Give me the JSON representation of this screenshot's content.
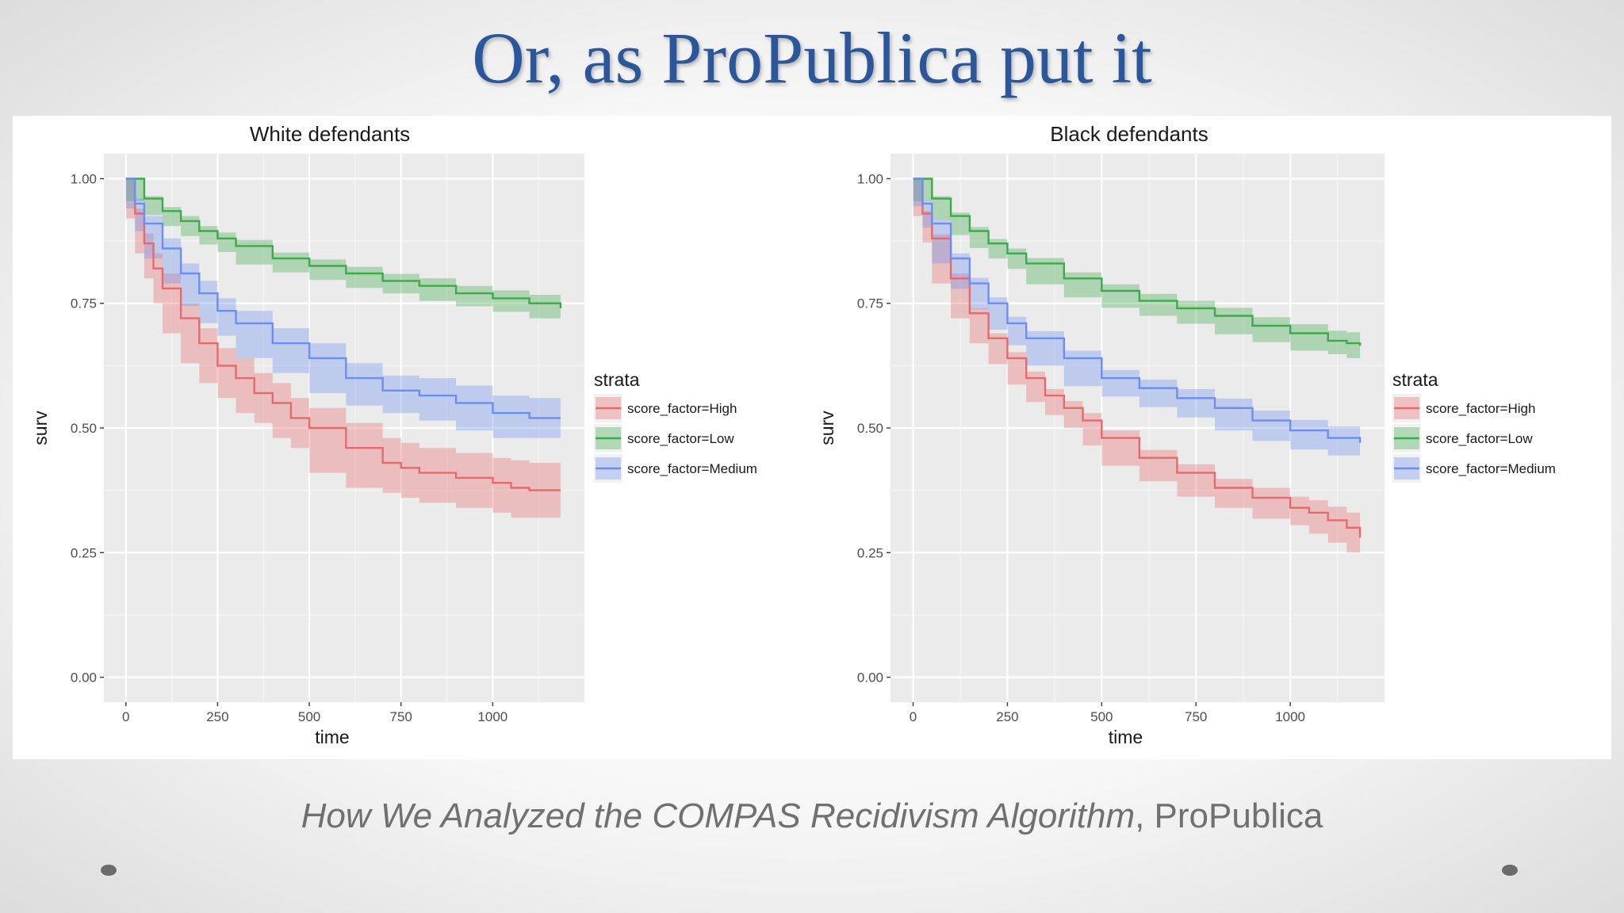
{
  "slide": {
    "title": "Or, as ProPublica put it",
    "caption_italic": "How We Analyzed the COMPAS Recidivism Algorithm",
    "caption_rest": ", ProPublica"
  },
  "colors": {
    "title": "#2b579a",
    "High": "#e8696b",
    "Low": "#3daa4a",
    "Medium": "#6b8ef2",
    "panel_bg": "#ebebeb",
    "grid": "#ffffff"
  },
  "chart_data": [
    {
      "type": "line",
      "title": "White defendants",
      "xlabel": "time",
      "ylabel": "surv",
      "xlim": [
        -60,
        1250
      ],
      "ylim": [
        -0.05,
        1.05
      ],
      "xticks": [
        0,
        250,
        500,
        750,
        1000
      ],
      "xtick_labels": [
        "0",
        "250",
        "500",
        "750",
        "1000"
      ],
      "yticks": [
        0,
        0.25,
        0.5,
        0.75,
        1.0
      ],
      "ytick_labels": [
        "0.00",
        "0.25",
        "0.50",
        "0.75",
        "1.00"
      ],
      "grid": true,
      "legend": {
        "title": "strata",
        "placement": "right",
        "entries": [
          "score_factor=High",
          "score_factor=Low",
          "score_factor=Medium"
        ]
      },
      "series": [
        {
          "name": "score_factor=High",
          "color_key": "High",
          "x": [
            0,
            25,
            50,
            75,
            100,
            150,
            200,
            250,
            300,
            350,
            400,
            450,
            500,
            600,
            700,
            750,
            800,
            900,
            1000,
            1050,
            1100,
            1185
          ],
          "y": [
            1.0,
            0.93,
            0.87,
            0.82,
            0.78,
            0.72,
            0.67,
            0.625,
            0.6,
            0.57,
            0.55,
            0.52,
            0.5,
            0.46,
            0.43,
            0.42,
            0.41,
            0.4,
            0.39,
            0.38,
            0.375,
            0.375
          ],
          "lower": [
            1.0,
            0.92,
            0.85,
            0.8,
            0.75,
            0.69,
            0.63,
            0.59,
            0.56,
            0.53,
            0.51,
            0.48,
            0.46,
            0.41,
            0.38,
            0.37,
            0.36,
            0.35,
            0.34,
            0.33,
            0.32,
            0.32
          ],
          "upper": [
            1.0,
            0.94,
            0.89,
            0.85,
            0.81,
            0.75,
            0.7,
            0.66,
            0.64,
            0.61,
            0.59,
            0.56,
            0.54,
            0.51,
            0.48,
            0.47,
            0.46,
            0.45,
            0.44,
            0.435,
            0.43,
            0.43
          ]
        },
        {
          "name": "score_factor=Low",
          "color_key": "Low",
          "x": [
            0,
            50,
            100,
            150,
            200,
            250,
            300,
            400,
            500,
            600,
            700,
            800,
            900,
            1000,
            1100,
            1185
          ],
          "y": [
            1.0,
            0.96,
            0.935,
            0.915,
            0.895,
            0.88,
            0.865,
            0.84,
            0.825,
            0.81,
            0.795,
            0.785,
            0.77,
            0.76,
            0.75,
            0.74
          ],
          "lower": [
            1.0,
            0.955,
            0.927,
            0.905,
            0.885,
            0.868,
            0.853,
            0.828,
            0.812,
            0.797,
            0.781,
            0.77,
            0.755,
            0.744,
            0.733,
            0.72
          ],
          "upper": [
            1.0,
            0.965,
            0.943,
            0.925,
            0.905,
            0.892,
            0.877,
            0.852,
            0.838,
            0.823,
            0.809,
            0.8,
            0.785,
            0.776,
            0.767,
            0.76
          ]
        },
        {
          "name": "score_factor=Medium",
          "color_key": "Medium",
          "x": [
            0,
            25,
            50,
            100,
            150,
            200,
            250,
            300,
            400,
            500,
            600,
            700,
            800,
            900,
            1000,
            1100,
            1185
          ],
          "y": [
            1.0,
            0.95,
            0.91,
            0.86,
            0.81,
            0.77,
            0.735,
            0.71,
            0.67,
            0.64,
            0.6,
            0.575,
            0.565,
            0.55,
            0.53,
            0.52,
            0.52
          ],
          "lower": [
            1.0,
            0.94,
            0.895,
            0.84,
            0.79,
            0.745,
            0.71,
            0.685,
            0.64,
            0.61,
            0.57,
            0.545,
            0.53,
            0.515,
            0.495,
            0.48,
            0.48
          ],
          "upper": [
            1.0,
            0.96,
            0.925,
            0.88,
            0.83,
            0.795,
            0.76,
            0.735,
            0.7,
            0.67,
            0.63,
            0.605,
            0.6,
            0.585,
            0.565,
            0.56,
            0.56
          ]
        }
      ]
    },
    {
      "type": "line",
      "title": "Black defendants",
      "xlabel": "time",
      "ylabel": "surv",
      "xlim": [
        -60,
        1250
      ],
      "ylim": [
        -0.05,
        1.05
      ],
      "xticks": [
        0,
        250,
        500,
        750,
        1000
      ],
      "xtick_labels": [
        "0",
        "250",
        "500",
        "750",
        "1000"
      ],
      "yticks": [
        0,
        0.25,
        0.5,
        0.75,
        1.0
      ],
      "ytick_labels": [
        "0.00",
        "0.25",
        "0.50",
        "0.75",
        "1.00"
      ],
      "grid": true,
      "legend": {
        "title": "strata",
        "placement": "right",
        "entries": [
          "score_factor=High",
          "score_factor=Low",
          "score_factor=Medium"
        ]
      },
      "series": [
        {
          "name": "score_factor=High",
          "color_key": "High",
          "x": [
            0,
            25,
            50,
            100,
            150,
            200,
            250,
            300,
            350,
            400,
            450,
            500,
            600,
            700,
            800,
            900,
            1000,
            1050,
            1100,
            1150,
            1185
          ],
          "y": [
            1.0,
            0.93,
            0.88,
            0.8,
            0.73,
            0.68,
            0.64,
            0.6,
            0.565,
            0.54,
            0.515,
            0.48,
            0.44,
            0.41,
            0.38,
            0.36,
            0.34,
            0.33,
            0.315,
            0.3,
            0.28
          ],
          "lower": [
            1.0,
            0.925,
            0.872,
            0.79,
            0.72,
            0.67,
            0.628,
            0.587,
            0.552,
            0.526,
            0.5,
            0.465,
            0.424,
            0.393,
            0.362,
            0.34,
            0.318,
            0.305,
            0.288,
            0.27,
            0.25
          ],
          "upper": [
            1.0,
            0.935,
            0.888,
            0.81,
            0.74,
            0.69,
            0.652,
            0.613,
            0.578,
            0.554,
            0.53,
            0.495,
            0.456,
            0.427,
            0.398,
            0.38,
            0.362,
            0.355,
            0.342,
            0.33,
            0.31
          ]
        },
        {
          "name": "score_factor=Low",
          "color_key": "Low",
          "x": [
            0,
            50,
            100,
            150,
            200,
            250,
            300,
            400,
            500,
            600,
            700,
            800,
            900,
            1000,
            1100,
            1150,
            1185
          ],
          "y": [
            1.0,
            0.96,
            0.925,
            0.895,
            0.87,
            0.85,
            0.83,
            0.8,
            0.775,
            0.755,
            0.74,
            0.725,
            0.705,
            0.69,
            0.675,
            0.67,
            0.665
          ],
          "lower": [
            1.0,
            0.955,
            0.918,
            0.887,
            0.861,
            0.84,
            0.819,
            0.788,
            0.762,
            0.741,
            0.725,
            0.709,
            0.688,
            0.672,
            0.655,
            0.648,
            0.64
          ],
          "upper": [
            1.0,
            0.965,
            0.932,
            0.903,
            0.879,
            0.86,
            0.841,
            0.812,
            0.788,
            0.769,
            0.755,
            0.741,
            0.722,
            0.708,
            0.695,
            0.692,
            0.69
          ]
        },
        {
          "name": "score_factor=Medium",
          "color_key": "Medium",
          "x": [
            0,
            25,
            50,
            100,
            150,
            200,
            250,
            300,
            400,
            500,
            600,
            700,
            800,
            900,
            1000,
            1100,
            1185
          ],
          "y": [
            1.0,
            0.95,
            0.91,
            0.84,
            0.79,
            0.75,
            0.71,
            0.68,
            0.64,
            0.6,
            0.58,
            0.56,
            0.54,
            0.515,
            0.495,
            0.48,
            0.47
          ],
          "lower": [
            1.0,
            0.945,
            0.902,
            0.83,
            0.779,
            0.738,
            0.697,
            0.666,
            0.625,
            0.584,
            0.563,
            0.542,
            0.521,
            0.495,
            0.474,
            0.457,
            0.445
          ],
          "upper": [
            1.0,
            0.955,
            0.918,
            0.85,
            0.801,
            0.762,
            0.723,
            0.694,
            0.655,
            0.616,
            0.597,
            0.578,
            0.559,
            0.535,
            0.516,
            0.503,
            0.495
          ]
        }
      ]
    }
  ]
}
